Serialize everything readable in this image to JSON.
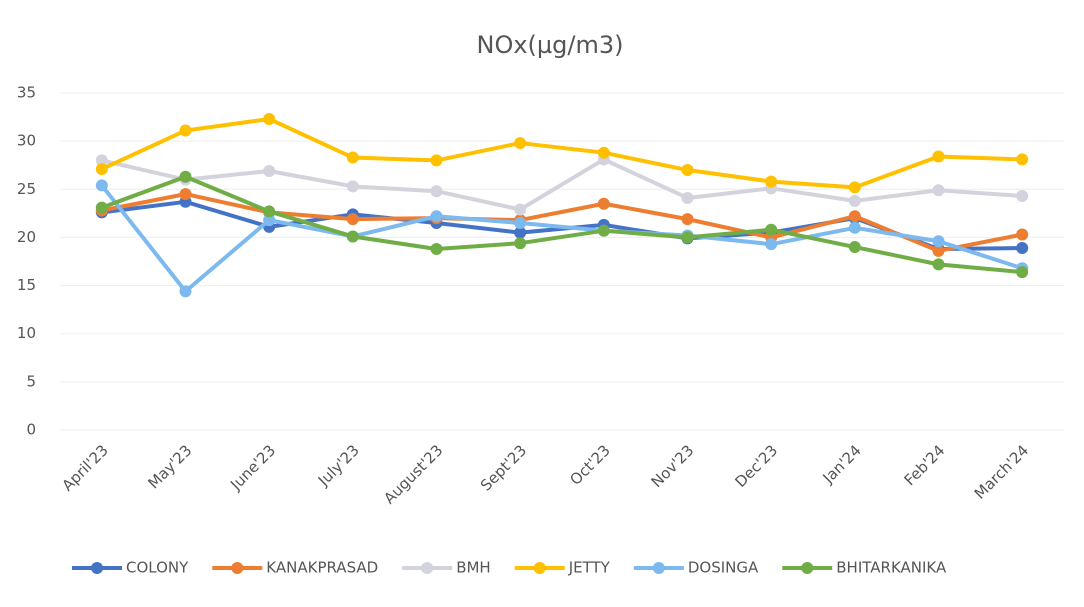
{
  "chart_data": {
    "type": "line",
    "title": "NOx(µg/m3)",
    "categories": [
      "April'23",
      "May'23",
      "June'23",
      "July'23",
      "August'23",
      "Sept'23",
      "Oct'23",
      "Nov'23",
      "Dec'23",
      "Jan'24",
      "Feb'24",
      "March'24"
    ],
    "series": [
      {
        "name": "COLONY",
        "color": "#4472c4",
        "values": [
          22.6,
          23.7,
          21.1,
          22.4,
          21.5,
          20.5,
          21.3,
          19.9,
          20.5,
          22.0,
          18.8,
          18.9
        ]
      },
      {
        "name": "KANAKPRASAD",
        "color": "#ed7d31",
        "values": [
          22.8,
          24.5,
          22.6,
          21.9,
          22.0,
          21.8,
          23.5,
          21.9,
          20.0,
          22.2,
          18.6,
          20.3
        ]
      },
      {
        "name": "BMH",
        "color": "#d3d3dd",
        "values": [
          28.0,
          26.0,
          26.9,
          25.3,
          24.8,
          22.9,
          28.1,
          24.1,
          25.1,
          23.8,
          24.9,
          24.3
        ]
      },
      {
        "name": "JETTY",
        "color": "#ffc000",
        "values": [
          27.1,
          31.1,
          32.3,
          28.3,
          28.0,
          29.8,
          28.8,
          27.0,
          25.8,
          25.2,
          28.4,
          28.1
        ]
      },
      {
        "name": "DOSINGA",
        "color": "#7cb9ee",
        "values": [
          25.4,
          14.4,
          21.8,
          20.1,
          22.2,
          21.5,
          20.7,
          20.2,
          19.3,
          21.0,
          19.6,
          16.8
        ]
      },
      {
        "name": "BHITARKANIKA",
        "color": "#70ad47",
        "values": [
          23.1,
          26.3,
          22.7,
          20.1,
          18.8,
          19.4,
          20.7,
          20.0,
          20.8,
          19.0,
          17.2,
          16.4
        ]
      }
    ],
    "ylim": [
      0,
      35
    ],
    "yticks": [
      0,
      5,
      10,
      15,
      20,
      25,
      30,
      35
    ],
    "grid": true,
    "legend": "bottom"
  }
}
